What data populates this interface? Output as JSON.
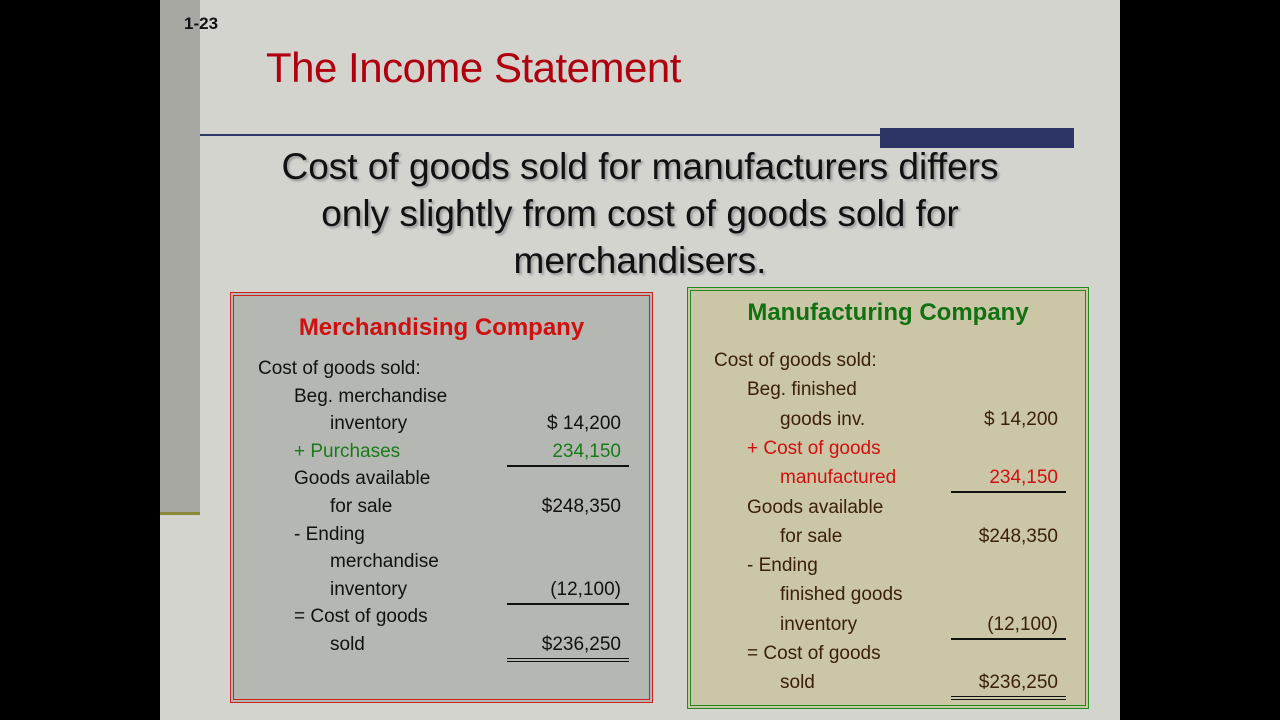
{
  "slide_number": "1-23",
  "title": "The Income Statement",
  "body_text": "Cost of goods sold for manufacturers differs only slightly from cost of goods sold for merchandisers.",
  "colors": {
    "title": "#b00010",
    "merch_border": "#d02020",
    "manu_border": "#1f8a1f",
    "accent_bar": "#2c3565"
  },
  "merchandising": {
    "title": "Merchandising Company",
    "rows": [
      {
        "label": "Cost of goods sold:",
        "indent": 0,
        "value": "",
        "color": "#111111",
        "underline": ""
      },
      {
        "label": "Beg. merchandise",
        "indent": 1,
        "value": "",
        "color": "#111111",
        "underline": ""
      },
      {
        "label": "inventory",
        "indent": 2,
        "value": "$  14,200",
        "color": "#111111",
        "underline": ""
      },
      {
        "label": "+ Purchases",
        "indent": 1,
        "value": "234,150",
        "color": "#1a7a1a",
        "underline": "single"
      },
      {
        "label": "Goods available",
        "indent": 1,
        "value": "",
        "color": "#111111",
        "underline": ""
      },
      {
        "label": "for sale",
        "indent": 2,
        "value": "$248,350",
        "color": "#111111",
        "underline": ""
      },
      {
        "label": "- Ending",
        "indent": 1,
        "value": "",
        "color": "#111111",
        "underline": ""
      },
      {
        "label": "merchandise",
        "indent": 2,
        "value": "",
        "color": "#111111",
        "underline": ""
      },
      {
        "label": "inventory",
        "indent": 2,
        "value": "(12,100)",
        "color": "#111111",
        "underline": "single"
      },
      {
        "label": "= Cost of goods",
        "indent": 1,
        "value": "",
        "color": "#111111",
        "underline": ""
      },
      {
        "label": "sold",
        "indent": 2,
        "value": "$236,250",
        "color": "#111111",
        "underline": "double"
      }
    ]
  },
  "manufacturing": {
    "title": "Manufacturing Company",
    "rows": [
      {
        "label": "Cost of goods sold:",
        "indent": 0,
        "value": "",
        "color": "#3a200a",
        "underline": ""
      },
      {
        "label": "Beg. finished",
        "indent": 1,
        "value": "",
        "color": "#3a200a",
        "underline": ""
      },
      {
        "label": "goods inv.",
        "indent": 2,
        "value": "$ 14,200",
        "color": "#3a200a",
        "underline": ""
      },
      {
        "label": "+ Cost of goods",
        "indent": 1,
        "value": "",
        "color": "#d01010",
        "underline": ""
      },
      {
        "label": "manufactured",
        "indent": 2,
        "value": "234,150",
        "color": "#d01010",
        "underline": "single"
      },
      {
        "label": "Goods available",
        "indent": 1,
        "value": "",
        "color": "#3a200a",
        "underline": ""
      },
      {
        "label": "for sale",
        "indent": 2,
        "value": "$248,350",
        "color": "#3a200a",
        "underline": ""
      },
      {
        "label": "- Ending",
        "indent": 1,
        "value": "",
        "color": "#3a200a",
        "underline": ""
      },
      {
        "label": "finished goods",
        "indent": 2,
        "value": "",
        "color": "#3a200a",
        "underline": ""
      },
      {
        "label": "inventory",
        "indent": 2,
        "value": "(12,100)",
        "color": "#3a200a",
        "underline": "single"
      },
      {
        "label": "= Cost of goods",
        "indent": 1,
        "value": "",
        "color": "#3a200a",
        "underline": ""
      },
      {
        "label": "sold",
        "indent": 2,
        "value": "$236,250",
        "color": "#3a200a",
        "underline": "double"
      }
    ]
  }
}
